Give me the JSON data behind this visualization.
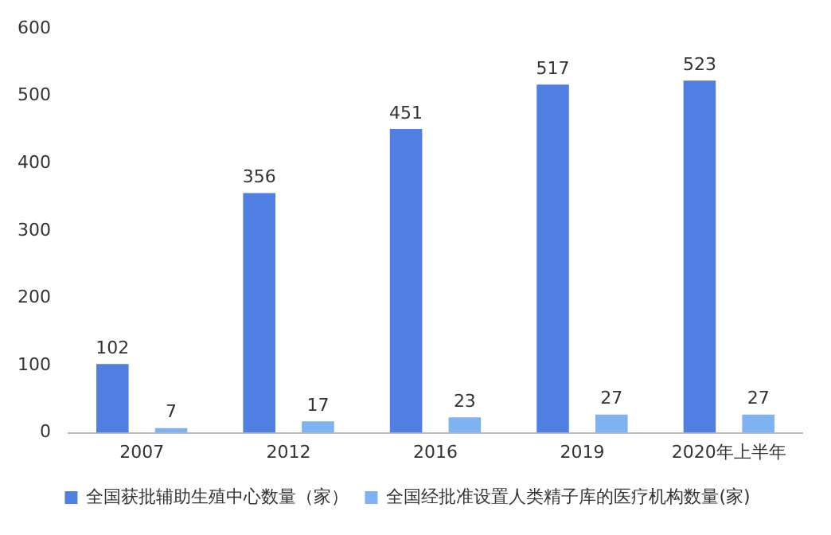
{
  "chart_data": {
    "type": "bar",
    "categories": [
      "2007",
      "2012",
      "2016",
      "2019",
      "2020年上半年"
    ],
    "series": [
      {
        "name": "全国获批辅助生殖中心数量（家）",
        "color": "#4f7fe0",
        "values": [
          102,
          356,
          451,
          517,
          523
        ]
      },
      {
        "name": "全国经批准设置人类精子库的医疗机构数量(家)",
        "color": "#7fb2f0",
        "values": [
          7,
          17,
          23,
          27,
          27
        ]
      }
    ],
    "ylim": [
      0,
      600
    ],
    "yticks": [
      0,
      100,
      200,
      300,
      400,
      500,
      600
    ],
    "grid": false,
    "legend": "bottom",
    "data_labels": true
  }
}
